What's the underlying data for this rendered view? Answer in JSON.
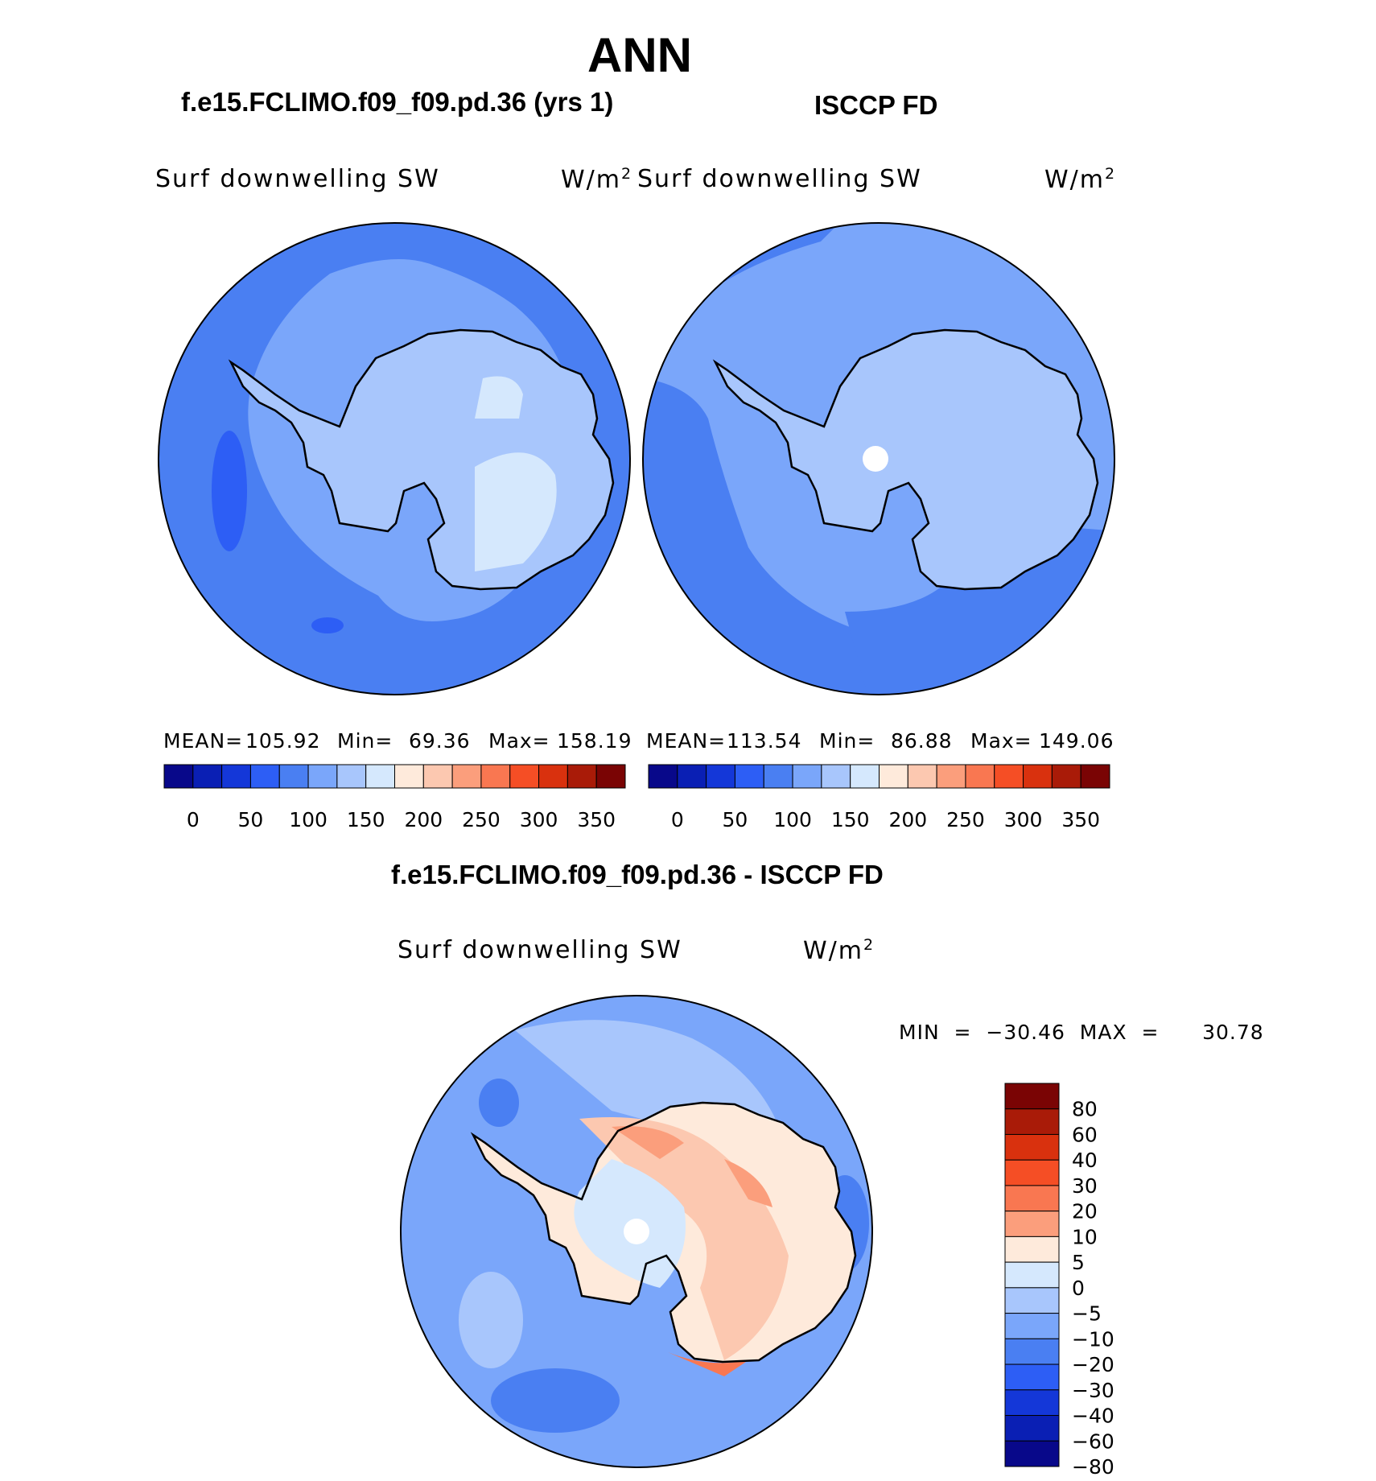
{
  "main_title": "ANN",
  "panels": {
    "model": {
      "title": "f.e15.FCLIMO.f09_f09.pd.36 (yrs 1)",
      "variable": "Surf  downwelling  SW",
      "units": "W/m",
      "units_sup": "2",
      "mean_label": "MEAN=",
      "mean": "105.92",
      "min_label": "Min=",
      "min": "69.36",
      "max_label": "Max=",
      "max": "158.19"
    },
    "obs": {
      "title": "ISCCP FD",
      "variable": "Surf  downwelling  SW",
      "units": "W/m",
      "units_sup": "2",
      "mean_label": "MEAN=",
      "mean": "113.54",
      "min_label": "Min=",
      "min": "86.88",
      "max_label": "Max=",
      "max": "149.06"
    },
    "diff": {
      "title": "f.e15.FCLIMO.f09_f09.pd.36 - ISCCP FD",
      "variable": "Surf  downwelling  SW",
      "units": "W/m",
      "units_sup": "2",
      "minmax": "MIN  =  −30.46  MAX  =      30.78"
    }
  },
  "colorbar_abs": {
    "colors": [
      "#08088a",
      "#0a1fb4",
      "#1437d8",
      "#2d5ef5",
      "#4a7ff2",
      "#7aa6fa",
      "#a8c6fc",
      "#d5e8fd",
      "#feeadb",
      "#fcc8b0",
      "#fb9e7c",
      "#f97751",
      "#f54e25",
      "#d9310e",
      "#a91b08",
      "#7a0404"
    ],
    "ticks": [
      "0",
      "50",
      "100",
      "150",
      "200",
      "250",
      "300",
      "350"
    ]
  },
  "colorbar_diff": {
    "colors": [
      "#7a0404",
      "#a91b08",
      "#d9310e",
      "#f54e25",
      "#f97751",
      "#fb9e7c",
      "#feeadb",
      "#d5e8fd",
      "#a8c6fc",
      "#7aa6fa",
      "#4a7ff2",
      "#2d5ef5",
      "#1437d8",
      "#0a1fb4",
      "#08088a"
    ],
    "ticks": [
      "80",
      "60",
      "40",
      "30",
      "20",
      "10",
      "5",
      "0",
      "−5",
      "−10",
      "−20",
      "−30",
      "−40",
      "−60",
      "−80"
    ]
  }
}
